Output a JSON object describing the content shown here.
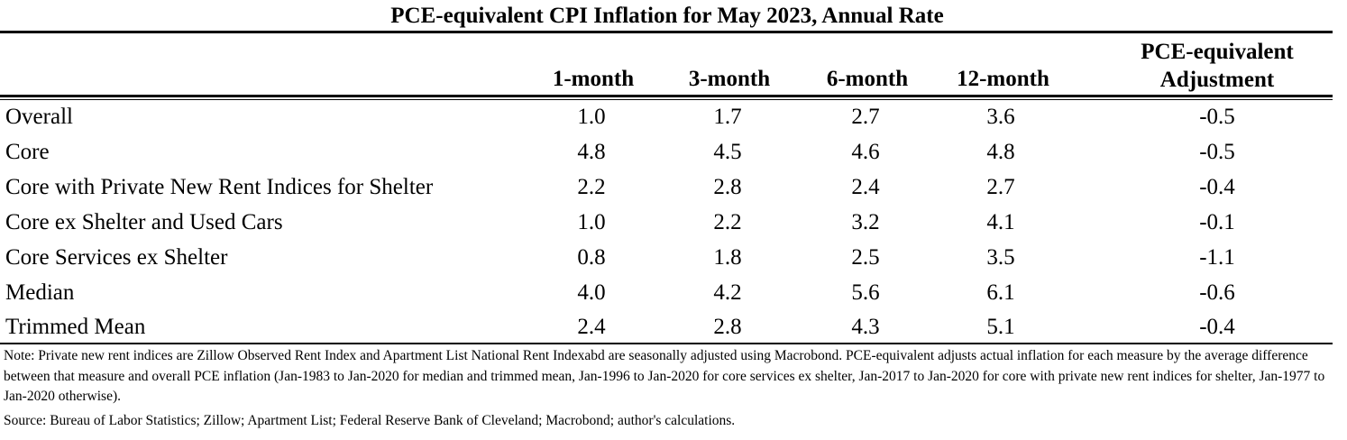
{
  "table": {
    "title": "PCE-equivalent CPI Inflation for May 2023, Annual Rate",
    "columns": {
      "m1": "1-month",
      "m3": "3-month",
      "m6": "6-month",
      "m12": "12-month",
      "adj_line1": "PCE-equivalent",
      "adj_line2": "Adjustment"
    },
    "rows": [
      {
        "label": "Overall",
        "m1": "1.0",
        "m3": "1.7",
        "m6": "2.7",
        "m12": "3.6",
        "adj": "-0.5"
      },
      {
        "label": "Core",
        "m1": "4.8",
        "m3": "4.5",
        "m6": "4.6",
        "m12": "4.8",
        "adj": "-0.5"
      },
      {
        "label": "Core with Private New Rent Indices for Shelter",
        "m1": "2.2",
        "m3": "2.8",
        "m6": "2.4",
        "m12": "2.7",
        "adj": "-0.4"
      },
      {
        "label": "Core ex Shelter and Used Cars",
        "m1": "1.0",
        "m3": "2.2",
        "m6": "3.2",
        "m12": "4.1",
        "adj": "-0.1"
      },
      {
        "label": "Core Services ex Shelter",
        "m1": "0.8",
        "m3": "1.8",
        "m6": "2.5",
        "m12": "3.5",
        "adj": "-1.1"
      },
      {
        "label": "Median",
        "m1": "4.0",
        "m3": "4.2",
        "m6": "5.6",
        "m12": "6.1",
        "adj": "-0.6"
      },
      {
        "label": "Trimmed Mean",
        "m1": "2.4",
        "m3": "2.8",
        "m6": "4.3",
        "m12": "5.1",
        "adj": "-0.4"
      }
    ],
    "note": "Note: Private new rent indices are Zillow Observed Rent Index and Apartment List National Rent Indexabd are seasonally adjusted using Macrobond. PCE-equivalent adjusts actual inflation for each measure by the average difference between that measure and overall PCE inflation (Jan-1983 to Jan-2020 for median and trimmed mean, Jan-1996 to Jan-2020 for core services ex shelter, Jan-2017 to Jan-2020 for core with private new rent indices for shelter, Jan-1977 to Jan-2020 otherwise).",
    "source": "Source: Bureau of Labor Statistics; Zillow; Apartment List; Federal Reserve Bank of Cleveland; Macrobond; author's calculations."
  }
}
